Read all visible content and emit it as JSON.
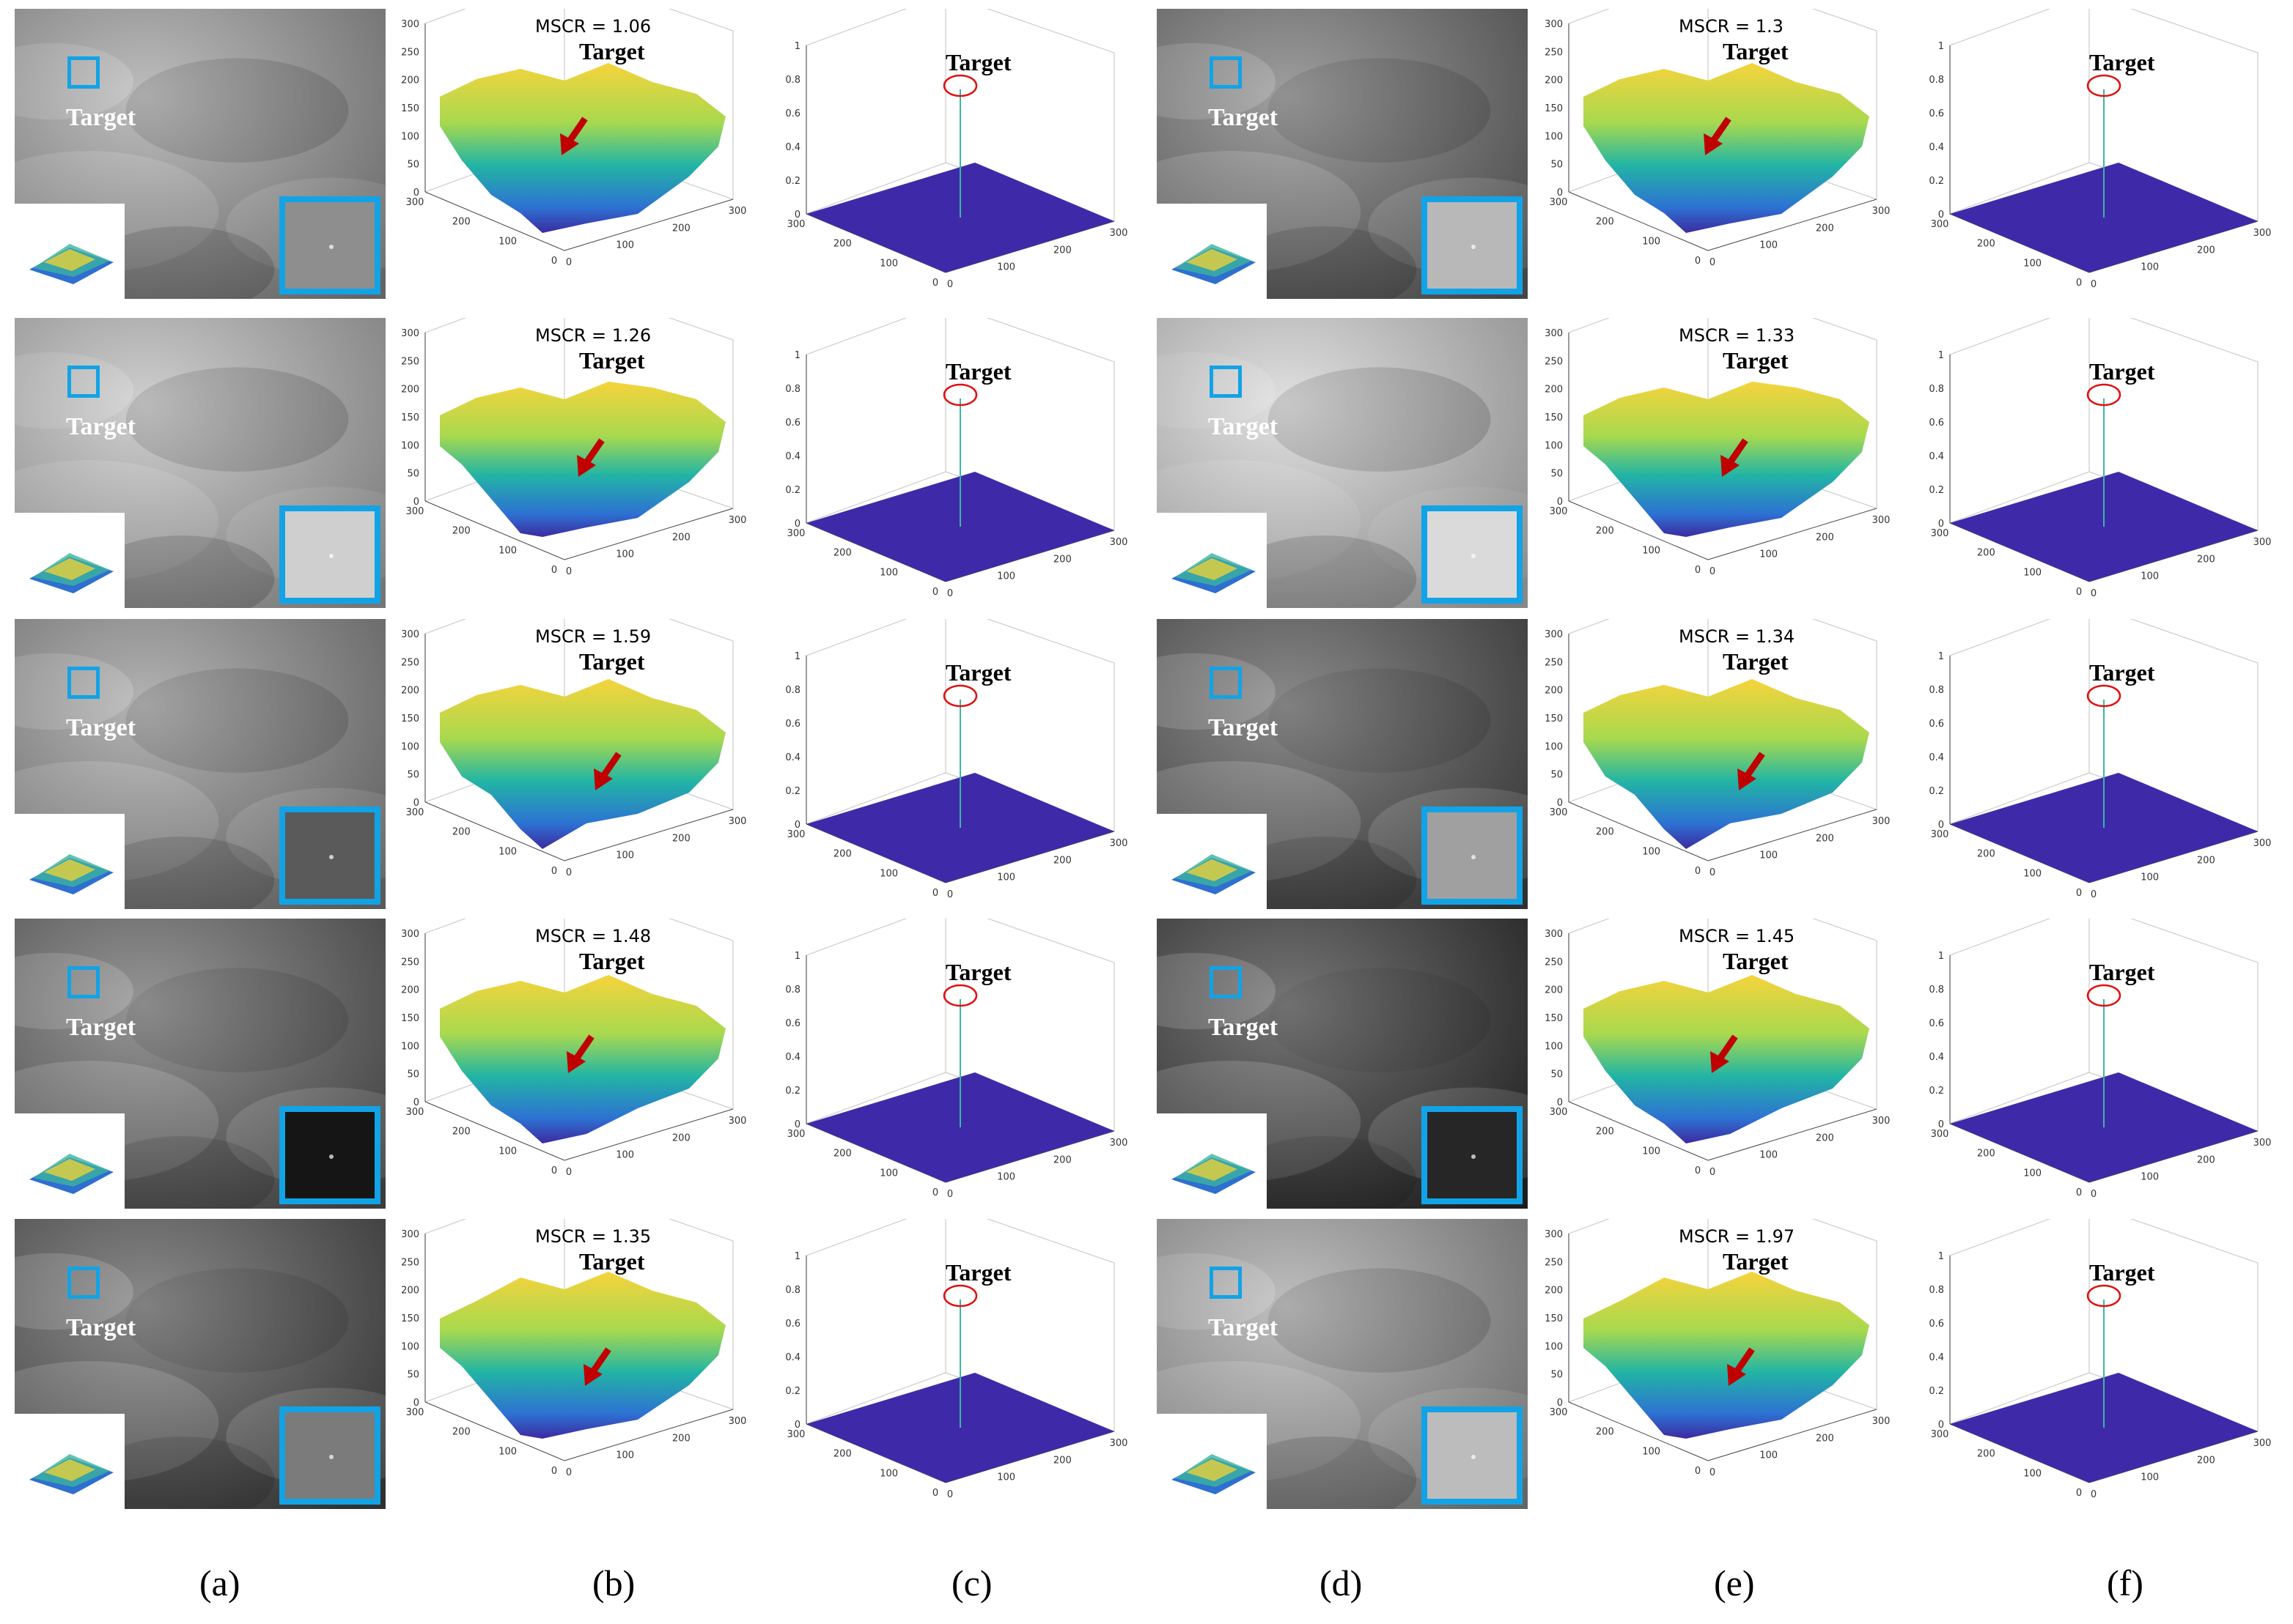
{
  "labels": {
    "target": "Target"
  },
  "column_labels": [
    "(a)",
    "(b)",
    "(c)",
    "(d)",
    "(e)",
    "(f)"
  ],
  "left_rows": [
    {
      "mscr": "MSCR = 1.06",
      "bg": "#9a9a9a",
      "zoom_fill": "#8e8e8e"
    },
    {
      "mscr": "MSCR = 1.26",
      "bg": "#b5b5b5",
      "zoom_fill": "#cfcfcf"
    },
    {
      "mscr": "MSCR = 1.59",
      "bg": "#8a8a8a",
      "zoom_fill": "#5a5a5a"
    },
    {
      "mscr": "MSCR = 1.48",
      "bg": "#5c5c5c",
      "zoom_fill": "#151515"
    },
    {
      "mscr": "MSCR = 1.35",
      "bg": "#4a4a4a",
      "zoom_fill": "#7b7b7b"
    }
  ],
  "right_rows": [
    {
      "mscr": "MSCR = 1.3",
      "bg": "#6a6a6a",
      "zoom_fill": "#b8b8b8"
    },
    {
      "mscr": "MSCR = 1.33",
      "bg": "#cfcfcf",
      "zoom_fill": "#dadada"
    },
    {
      "mscr": "MSCR = 1.34",
      "bg": "#4a4a4a",
      "zoom_fill": "#a0a0a0"
    },
    {
      "mscr": "MSCR = 1.45",
      "bg": "#2b2b2b",
      "zoom_fill": "#262626"
    },
    {
      "mscr": "MSCR = 1.97",
      "bg": "#9b9b9b",
      "zoom_fill": "#bcbcbc"
    }
  ],
  "surface_axis": {
    "z_ticks": [
      "0",
      "50",
      "100",
      "150",
      "200",
      "250",
      "300"
    ],
    "x_ticks": [
      "0",
      "100",
      "200",
      "300"
    ],
    "y_ticks": [
      "0",
      "100",
      "200",
      "300"
    ]
  },
  "response_axis": {
    "z_ticks": [
      "0",
      "0.2",
      "0.4",
      "0.6",
      "0.8",
      "1"
    ],
    "x_ticks": [
      "0",
      "100",
      "200",
      "300"
    ],
    "y_ticks": [
      "0",
      "100",
      "200",
      "300"
    ]
  },
  "colors": {
    "box_blue": "#12a3e6",
    "arrow_red": "#c00000",
    "plane_blue": "#3e2aa8",
    "circle_red": "#e01010"
  }
}
